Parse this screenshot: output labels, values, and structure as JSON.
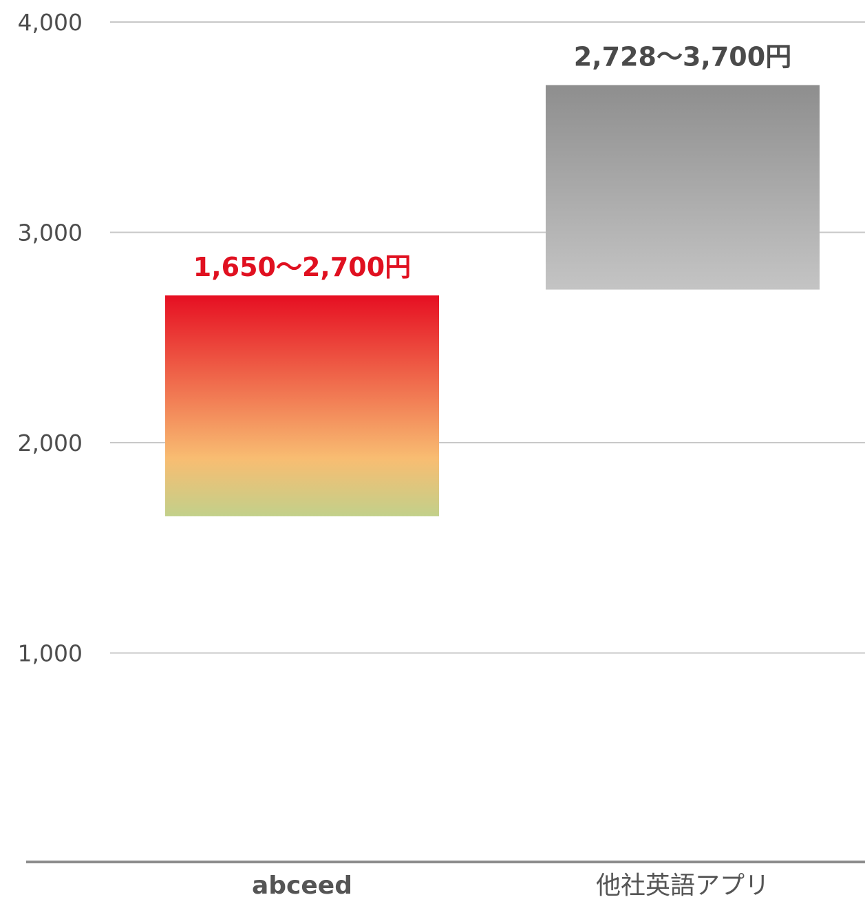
{
  "chart_data": {
    "type": "bar",
    "subtype": "floating-range",
    "categories": [
      "abceed",
      "他社英語アプリ"
    ],
    "series": [
      {
        "ranges": [
          [
            1650,
            2700
          ],
          [
            2728,
            3700
          ]
        ]
      }
    ],
    "data_labels": [
      "1,650〜2,700円",
      "2,728〜3,700円"
    ],
    "y_ticks": [
      "1,000",
      "2,000",
      "3,000",
      "4,000"
    ],
    "y_tick_values": [
      1000,
      2000,
      3000,
      4000
    ],
    "ylim": [
      0,
      4000
    ],
    "grid": true,
    "legend": "none",
    "colors": {
      "abceed_top": "#e60f22",
      "abceed_mid": "#f8bd72",
      "abceed_bottom": "#c2d08a",
      "other_top": "#8e8e8e",
      "other_bottom": "#c4c4c4",
      "abceed_label": "#e01020",
      "other_label": "#4a4a4a",
      "gridline": "#c8c8c8",
      "baseline": "#8c8c8c"
    }
  }
}
